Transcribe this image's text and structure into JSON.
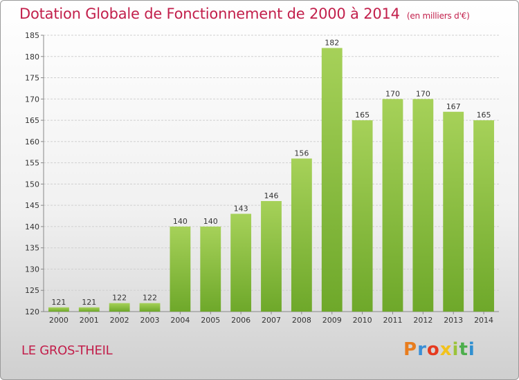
{
  "header": {
    "title": "Dotation Globale de Fonctionnement de 2000 à 2014",
    "unit": "(en milliers d'€)"
  },
  "footer": {
    "commune": "LE GROS-THEIL",
    "brand": "Proxiti",
    "brand_colors": [
      "#e87d1e",
      "#3a8fd6",
      "#e63a1f",
      "#f2c21c",
      "#9bc33a",
      "#4cae4c",
      "#2f8fd0"
    ]
  },
  "colors": {
    "bar_top": "#a6d159",
    "bar_bottom": "#6ea82a",
    "title": "#c21f4b",
    "grid": "#cfcfcf"
  },
  "chart_data": {
    "type": "bar",
    "categories": [
      "2000",
      "2001",
      "2002",
      "2003",
      "2004",
      "2005",
      "2006",
      "2007",
      "2008",
      "2009",
      "2010",
      "2011",
      "2012",
      "2013",
      "2014"
    ],
    "values": [
      121,
      121,
      122,
      122,
      140,
      140,
      143,
      146,
      156,
      182,
      165,
      170,
      170,
      167,
      165
    ],
    "ylim": [
      120,
      185
    ],
    "yticks": [
      120,
      125,
      130,
      135,
      140,
      145,
      150,
      155,
      160,
      165,
      170,
      175,
      180,
      185
    ],
    "grid": "horizontal"
  }
}
